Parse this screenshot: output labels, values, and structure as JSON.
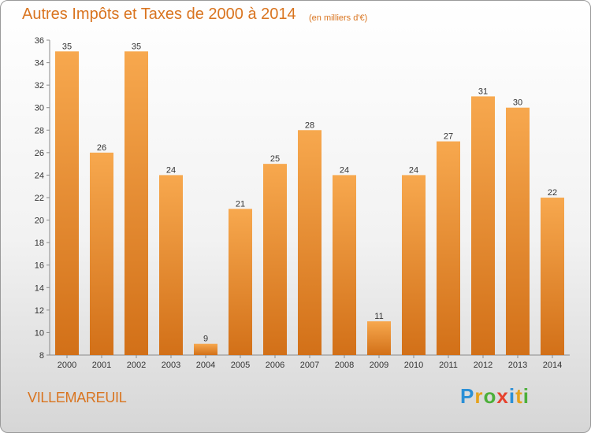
{
  "title": "Autres Impôts et Taxes de 2000 à 2014",
  "subtitle": "(en milliers d'€)",
  "commune": "VILLEMAREUIL",
  "logo": {
    "text": "Proxiti",
    "colors": [
      "#2a8fd6",
      "#e6a21c",
      "#4caf3a",
      "#e6422e",
      "#2a8fd6",
      "#e6a21c",
      "#4caf3a"
    ]
  },
  "colors": {
    "bar_top": "#f7a84e",
    "bar_bottom": "#d27018",
    "axis": "#8a8a8a",
    "label": "#333333"
  },
  "chart_data": {
    "type": "bar",
    "categories": [
      "2000",
      "2001",
      "2002",
      "2003",
      "2004",
      "2005",
      "2006",
      "2007",
      "2008",
      "2009",
      "2010",
      "2011",
      "2012",
      "2013",
      "2014"
    ],
    "values": [
      35,
      26,
      35,
      24,
      9,
      21,
      25,
      28,
      24,
      11,
      24,
      27,
      31,
      30,
      22
    ],
    "ylim": [
      8,
      36
    ],
    "yticks": [
      8,
      10,
      12,
      14,
      16,
      18,
      20,
      22,
      24,
      26,
      28,
      30,
      32,
      34,
      36
    ],
    "grid": false,
    "legend": "none"
  }
}
